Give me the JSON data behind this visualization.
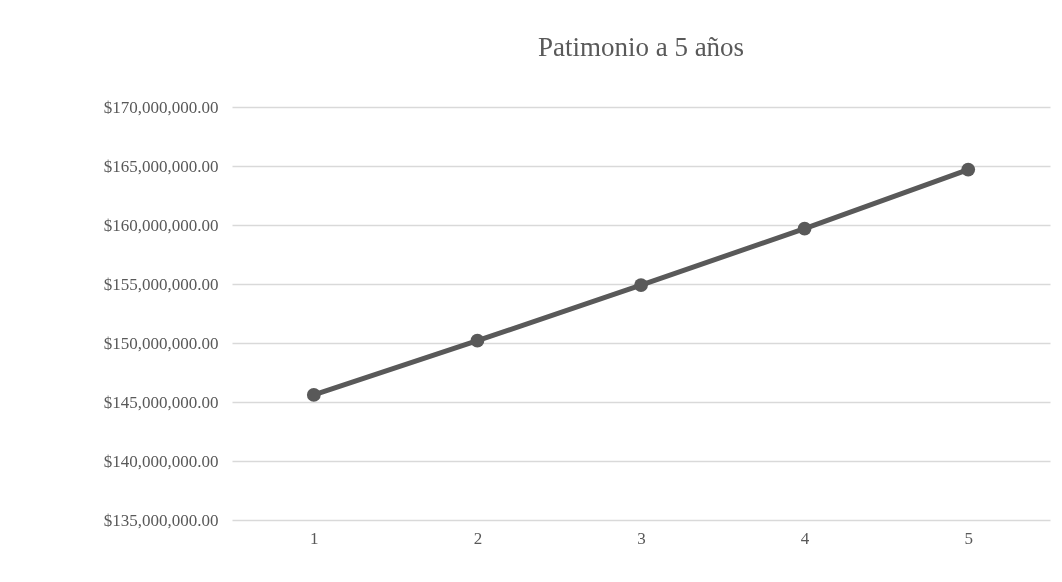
{
  "chart_data": {
    "type": "line",
    "title": "Patimonio a 5 años",
    "categories": [
      "1",
      "2",
      "3",
      "4",
      "5"
    ],
    "series": [
      {
        "color": "#595959",
        "values": [
          145600000,
          150200000,
          154900000,
          159700000,
          164700000
        ]
      }
    ],
    "ylim": [
      135000000,
      170000000
    ],
    "yticks": [
      {
        "value": 135000000,
        "label": "$135,000,000.00"
      },
      {
        "value": 140000000,
        "label": "$140,000,000.00"
      },
      {
        "value": 145000000,
        "label": "$145,000,000.00"
      },
      {
        "value": 150000000,
        "label": "$150,000,000.00"
      },
      {
        "value": 155000000,
        "label": "$155,000,000.00"
      },
      {
        "value": 160000000,
        "label": "$160,000,000.00"
      },
      {
        "value": 165000000,
        "label": "$165,000,000.00"
      },
      {
        "value": 170000000,
        "label": "$170,000,000.00"
      }
    ],
    "grid": "y",
    "marker": "circle",
    "line_style": "solid"
  }
}
